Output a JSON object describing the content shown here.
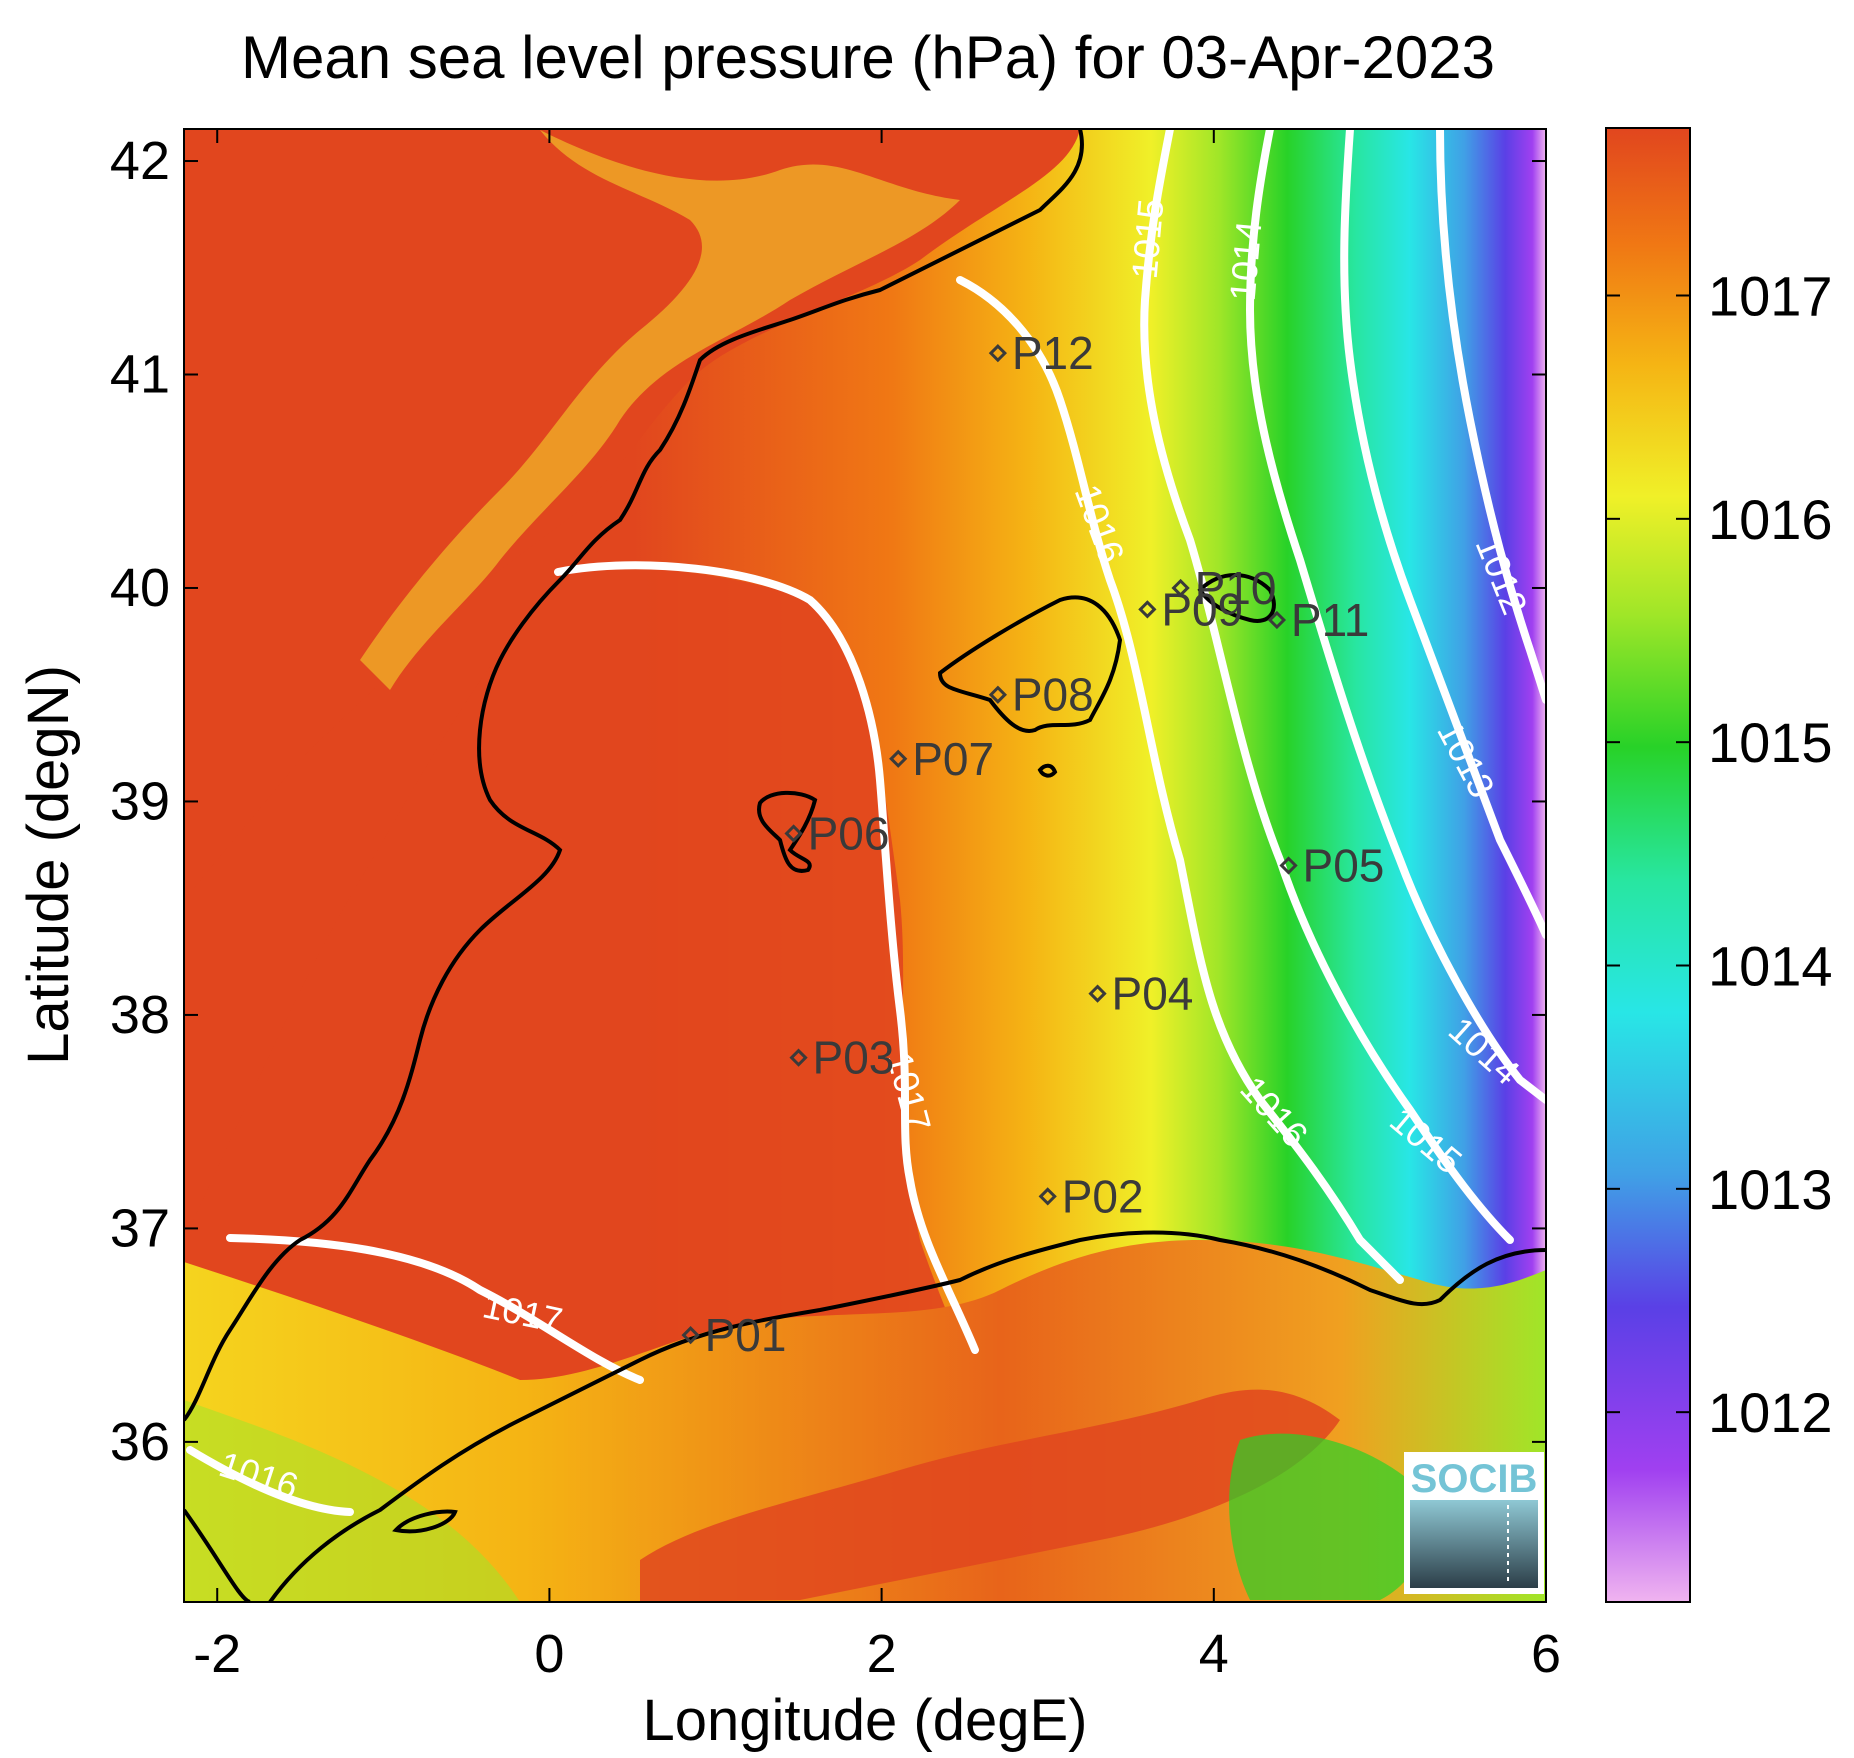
{
  "title": "Mean sea level pressure (hPa) for 03-Apr-2023",
  "axes": {
    "xlabel": "Longitude (degE)",
    "ylabel": "Latitude (degN)",
    "xlim": [
      -2.2,
      6.0
    ],
    "ylim": [
      35.25,
      42.15
    ],
    "xticks": [
      -2,
      0,
      2,
      4,
      6
    ],
    "xtick_labels": [
      "-2",
      "0",
      "2",
      "4",
      "6"
    ],
    "yticks": [
      36,
      37,
      38,
      39,
      40,
      41,
      42
    ],
    "ytick_labels": [
      "36",
      "37",
      "38",
      "39",
      "40",
      "41",
      "42"
    ]
  },
  "colorbar": {
    "range": [
      1011.15,
      1017.75
    ],
    "ticks": [
      1012,
      1013,
      1014,
      1015,
      1016,
      1017
    ],
    "tick_labels": [
      "1012",
      "1013",
      "1014",
      "1015",
      "1016",
      "1017"
    ],
    "colormap": [
      "#f0b4f0",
      "#a040f0",
      "#5a40e6",
      "#40a0e6",
      "#28e6e6",
      "#28e6a0",
      "#28d228",
      "#a0e628",
      "#f0f028",
      "#f5b414",
      "#f07814",
      "#e1461e"
    ]
  },
  "stations": [
    {
      "name": "P01",
      "lon": 0.85,
      "lat": 36.5
    },
    {
      "name": "P02",
      "lon": 3.0,
      "lat": 37.15
    },
    {
      "name": "P03",
      "lon": 1.5,
      "lat": 37.8
    },
    {
      "name": "P04",
      "lon": 3.3,
      "lat": 38.1
    },
    {
      "name": "P05",
      "lon": 4.45,
      "lat": 38.7
    },
    {
      "name": "P06",
      "lon": 1.47,
      "lat": 38.85
    },
    {
      "name": "P07",
      "lon": 2.1,
      "lat": 39.2
    },
    {
      "name": "P08",
      "lon": 2.7,
      "lat": 39.5
    },
    {
      "name": "P09",
      "lon": 3.6,
      "lat": 39.9
    },
    {
      "name": "P10",
      "lon": 3.8,
      "lat": 40.0
    },
    {
      "name": "P11",
      "lon": 4.38,
      "lat": 39.85
    },
    {
      "name": "P12",
      "lon": 2.7,
      "lat": 41.1
    }
  ],
  "contours": [
    {
      "level": 1017,
      "label": "1017"
    },
    {
      "level": 1016,
      "label": "1016"
    },
    {
      "level": 1015,
      "label": "1015"
    },
    {
      "level": 1014,
      "label": "1014"
    },
    {
      "level": 1013,
      "label": "1013"
    },
    {
      "level": 1012,
      "label": "1012"
    }
  ],
  "logo": {
    "text": "SOCIB"
  },
  "colors": {
    "contour": "#ffffff",
    "coastline": "#000000",
    "station_marker": "#3a3a3a",
    "land_high": "#e1461e"
  }
}
